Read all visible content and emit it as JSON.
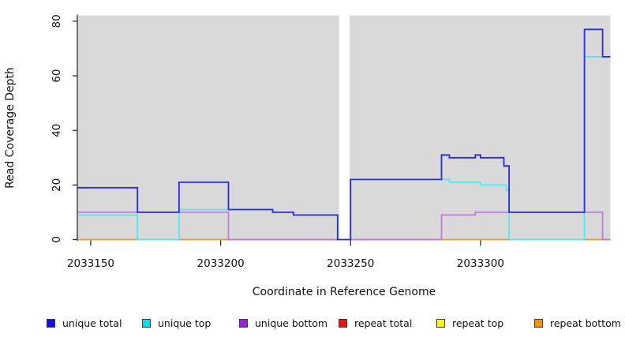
{
  "figure": {
    "background": "#ffffff",
    "plot_background": "#d9d9d9",
    "axis_color": "#2f2f2f",
    "tick_label_color": "#111111"
  },
  "chart_data": {
    "type": "line",
    "subtype": "step-coverage-plot",
    "title": "",
    "xlabel": "Coordinate in Reference Genome",
    "ylabel": "Read Coverage Depth",
    "xlim": [
      2033145,
      2033350
    ],
    "ylim": [
      0,
      82
    ],
    "xticks": [
      2033150,
      2033200,
      2033250,
      2033300
    ],
    "yticks": [
      0,
      20,
      40,
      60,
      80
    ],
    "grid": false,
    "legend_position": "bottom",
    "gap_region": {
      "x_start": 2033245.6,
      "x_end": 2033249.6,
      "color": "#ffffff"
    },
    "series": [
      {
        "name": "unique total",
        "color": "#2a2ae0",
        "draw": true,
        "points": [
          [
            2033145,
            19
          ],
          [
            2033168,
            19
          ],
          [
            2033168,
            10
          ],
          [
            2033184,
            10
          ],
          [
            2033184,
            21
          ],
          [
            2033203,
            21
          ],
          [
            2033203,
            11
          ],
          [
            2033220,
            11
          ],
          [
            2033220,
            10
          ],
          [
            2033228,
            10
          ],
          [
            2033228,
            9
          ],
          [
            2033245,
            9
          ],
          [
            2033245,
            0
          ],
          [
            2033250,
            0
          ],
          [
            2033250,
            22
          ],
          [
            2033285,
            22
          ],
          [
            2033285,
            31
          ],
          [
            2033288,
            31
          ],
          [
            2033288,
            30
          ],
          [
            2033298,
            30
          ],
          [
            2033298,
            31
          ],
          [
            2033300,
            31
          ],
          [
            2033300,
            30
          ],
          [
            2033309,
            30
          ],
          [
            2033309,
            27
          ],
          [
            2033311,
            27
          ],
          [
            2033311,
            10
          ],
          [
            2033340,
            10
          ],
          [
            2033340,
            77
          ],
          [
            2033347,
            77
          ],
          [
            2033347,
            67
          ],
          [
            2033350,
            67
          ]
        ]
      },
      {
        "name": "unique top",
        "color": "#55e6ee",
        "draw": true,
        "points": [
          [
            2033145,
            9
          ],
          [
            2033168,
            9
          ],
          [
            2033168,
            0
          ],
          [
            2033184,
            0
          ],
          [
            2033184,
            11
          ],
          [
            2033220,
            11
          ],
          [
            2033220,
            10
          ],
          [
            2033228,
            10
          ],
          [
            2033228,
            9
          ],
          [
            2033245,
            9
          ],
          [
            2033245,
            0
          ],
          [
            2033250,
            0
          ],
          [
            2033250,
            22
          ],
          [
            2033288,
            22
          ],
          [
            2033288,
            21
          ],
          [
            2033300,
            21
          ],
          [
            2033300,
            20
          ],
          [
            2033310,
            20
          ],
          [
            2033310,
            18
          ],
          [
            2033311,
            18
          ],
          [
            2033311,
            0
          ],
          [
            2033340,
            0
          ],
          [
            2033340,
            67
          ],
          [
            2033350,
            67
          ]
        ]
      },
      {
        "name": "unique bottom",
        "color": "#bd7cdf",
        "draw": true,
        "points": [
          [
            2033145,
            10
          ],
          [
            2033203,
            10
          ],
          [
            2033203,
            0
          ],
          [
            2033285,
            0
          ],
          [
            2033285,
            9
          ],
          [
            2033298,
            9
          ],
          [
            2033298,
            10
          ],
          [
            2033347,
            10
          ],
          [
            2033347,
            0
          ],
          [
            2033350,
            0
          ]
        ]
      },
      {
        "name": "repeat total",
        "color": "#d84070",
        "draw": false,
        "points": [
          [
            2033145,
            0
          ],
          [
            2033350,
            0
          ]
        ]
      },
      {
        "name": "repeat top",
        "color": "#f5e642",
        "draw": false,
        "points": [
          [
            2033145,
            0
          ],
          [
            2033350,
            0
          ]
        ]
      },
      {
        "name": "repeat bottom",
        "color": "#ff9415",
        "draw": false,
        "points": [
          [
            2033145,
            0
          ],
          [
            2033350,
            0
          ]
        ]
      }
    ],
    "baseline_segments": [
      {
        "x_start": 2033145,
        "x_end": 2033168,
        "color": "#ff9415"
      },
      {
        "x_start": 2033168,
        "x_end": 2033184,
        "color": "#8fd0a0"
      },
      {
        "x_start": 2033184,
        "x_end": 2033203,
        "color": "#ff9415"
      },
      {
        "x_start": 2033203,
        "x_end": 2033285,
        "color": "#d84070"
      },
      {
        "x_start": 2033285,
        "x_end": 2033311,
        "color": "#ff9415"
      },
      {
        "x_start": 2033311,
        "x_end": 2033340,
        "color": "#8fd0a0"
      },
      {
        "x_start": 2033340,
        "x_end": 2033347,
        "color": "#ff9415"
      },
      {
        "x_start": 2033347,
        "x_end": 2033350,
        "color": "#d84070"
      }
    ]
  },
  "legend": {
    "items": [
      {
        "label": "unique total",
        "color": "#0f0fe8"
      },
      {
        "label": "unique top",
        "color": "#00e2f0"
      },
      {
        "label": "unique bottom",
        "color": "#9b22d4"
      },
      {
        "label": "repeat total",
        "color": "#ee1111"
      },
      {
        "label": "repeat top",
        "color": "#fbf71e"
      },
      {
        "label": "repeat bottom",
        "color": "#f59300"
      }
    ]
  }
}
